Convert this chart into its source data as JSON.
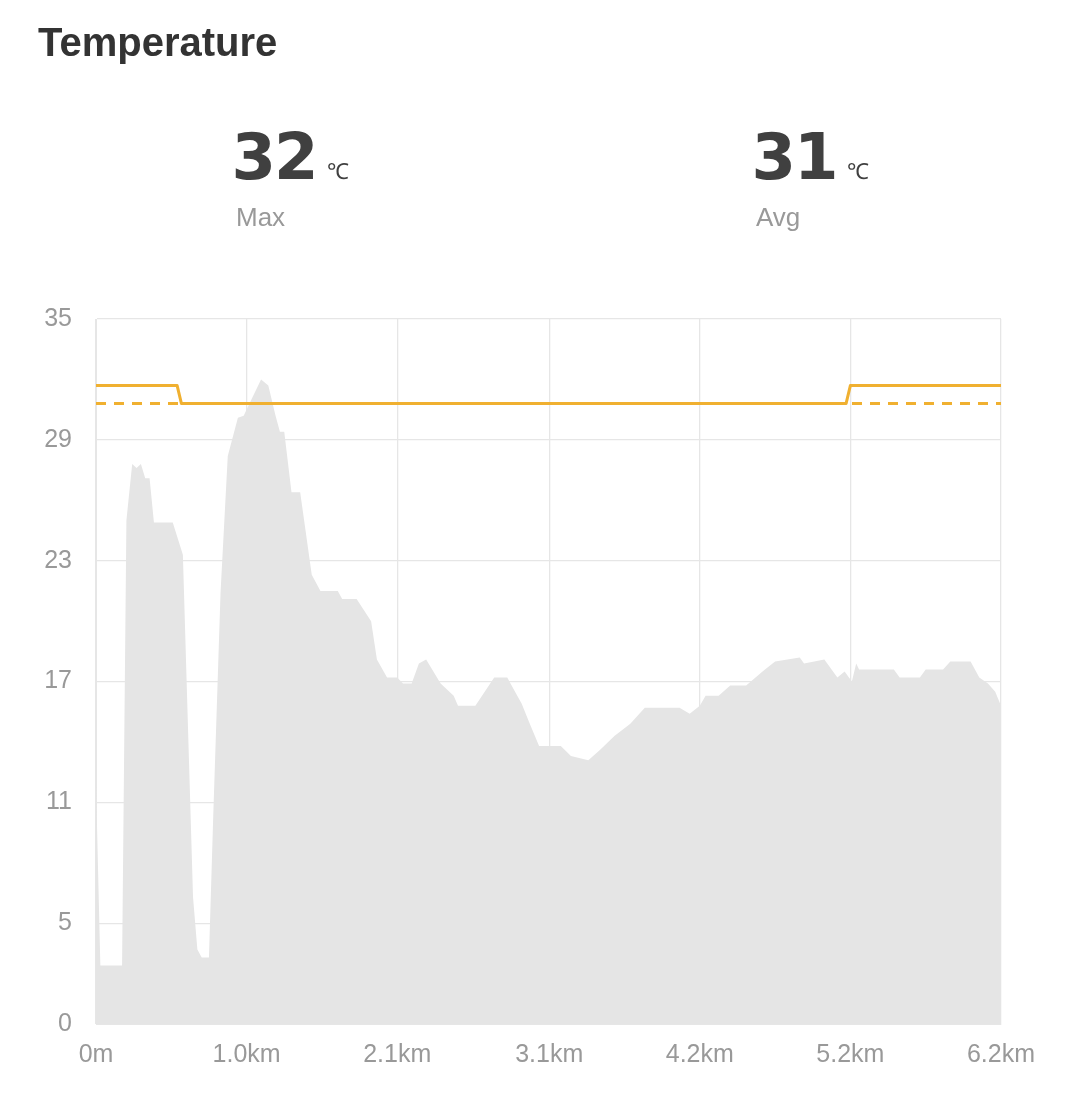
{
  "chart_data": {
    "type": "area",
    "title": "Temperature",
    "annotations": [
      "32℃",
      "Max",
      "31℃",
      "Avg"
    ],
    "xlim": [
      0,
      6.25
    ],
    "xticks": [
      {
        "value": 0,
        "label": "0m"
      },
      {
        "value": 1.04,
        "label": "1.0km"
      },
      {
        "value": 2.08,
        "label": "2.1km"
      },
      {
        "value": 3.13,
        "label": "3.1km"
      },
      {
        "value": 4.17,
        "label": "4.2km"
      },
      {
        "value": 5.21,
        "label": "5.2km"
      },
      {
        "value": 6.25,
        "label": "6.2km"
      }
    ],
    "ylim": [
      0,
      35
    ],
    "yticks": [
      0,
      5,
      11,
      17,
      23,
      29,
      35
    ],
    "grid": true,
    "legend": false,
    "marker": "none",
    "ref_lines": [
      {
        "axis": "y",
        "value": 30.8,
        "color": "#f0b030",
        "line_style": "dashed"
      }
    ],
    "series": [
      {
        "type": "line",
        "color": "#f0b030",
        "line_style": "solid",
        "x": [
          0,
          0.56,
          0.59,
          5.18,
          5.21,
          6.25
        ],
        "values": [
          31.7,
          31.7,
          30.8,
          30.8,
          31.7,
          31.7
        ]
      },
      {
        "type": "area",
        "color": "#e5e5e5",
        "x": [
          0,
          0.03,
          0.18,
          0.21,
          0.25,
          0.28,
          0.31,
          0.34,
          0.37,
          0.4,
          0.53,
          0.6,
          0.67,
          0.7,
          0.73,
          0.78,
          0.81,
          0.86,
          0.91,
          0.98,
          1.02,
          1.06,
          1.1,
          1.14,
          1.19,
          1.24,
          1.27,
          1.3,
          1.35,
          1.41,
          1.49,
          1.55,
          1.67,
          1.7,
          1.8,
          1.9,
          1.94,
          2.01,
          2.08,
          2.12,
          2.18,
          2.23,
          2.28,
          2.38,
          2.47,
          2.5,
          2.62,
          2.75,
          2.84,
          2.94,
          2.99,
          3.06,
          3.21,
          3.28,
          3.4,
          3.48,
          3.58,
          3.69,
          3.79,
          4.03,
          4.1,
          4.17,
          4.21,
          4.3,
          4.38,
          4.49,
          4.62,
          4.69,
          4.86,
          4.89,
          5.03,
          5.12,
          5.17,
          5.22,
          5.25,
          5.27,
          5.31,
          5.51,
          5.55,
          5.69,
          5.73,
          5.85,
          5.9,
          6.04,
          6.1,
          6.16,
          6.21,
          6.25
        ],
        "values": [
          11.9,
          2.9,
          2.9,
          25.0,
          27.8,
          27.6,
          27.8,
          27.1,
          27.1,
          24.9,
          24.9,
          23.3,
          6.3,
          3.7,
          3.3,
          3.3,
          10.4,
          21.4,
          28.2,
          30.1,
          30.2,
          30.8,
          31.4,
          32.0,
          31.7,
          30.2,
          29.4,
          29.4,
          26.4,
          26.4,
          22.3,
          21.5,
          21.5,
          21.1,
          21.1,
          20.0,
          18.1,
          17.2,
          17.2,
          16.9,
          16.9,
          17.9,
          18.1,
          16.9,
          16.3,
          15.8,
          15.8,
          17.2,
          17.2,
          15.9,
          15.0,
          13.8,
          13.8,
          13.3,
          13.1,
          13.6,
          14.3,
          14.9,
          15.7,
          15.7,
          15.4,
          15.8,
          16.3,
          16.3,
          16.8,
          16.8,
          17.6,
          18.0,
          18.2,
          17.9,
          18.1,
          17.2,
          17.5,
          17.0,
          17.9,
          17.6,
          17.6,
          17.6,
          17.2,
          17.2,
          17.6,
          17.6,
          18.0,
          18.0,
          17.2,
          16.9,
          16.5,
          15.8
        ]
      }
    ]
  }
}
